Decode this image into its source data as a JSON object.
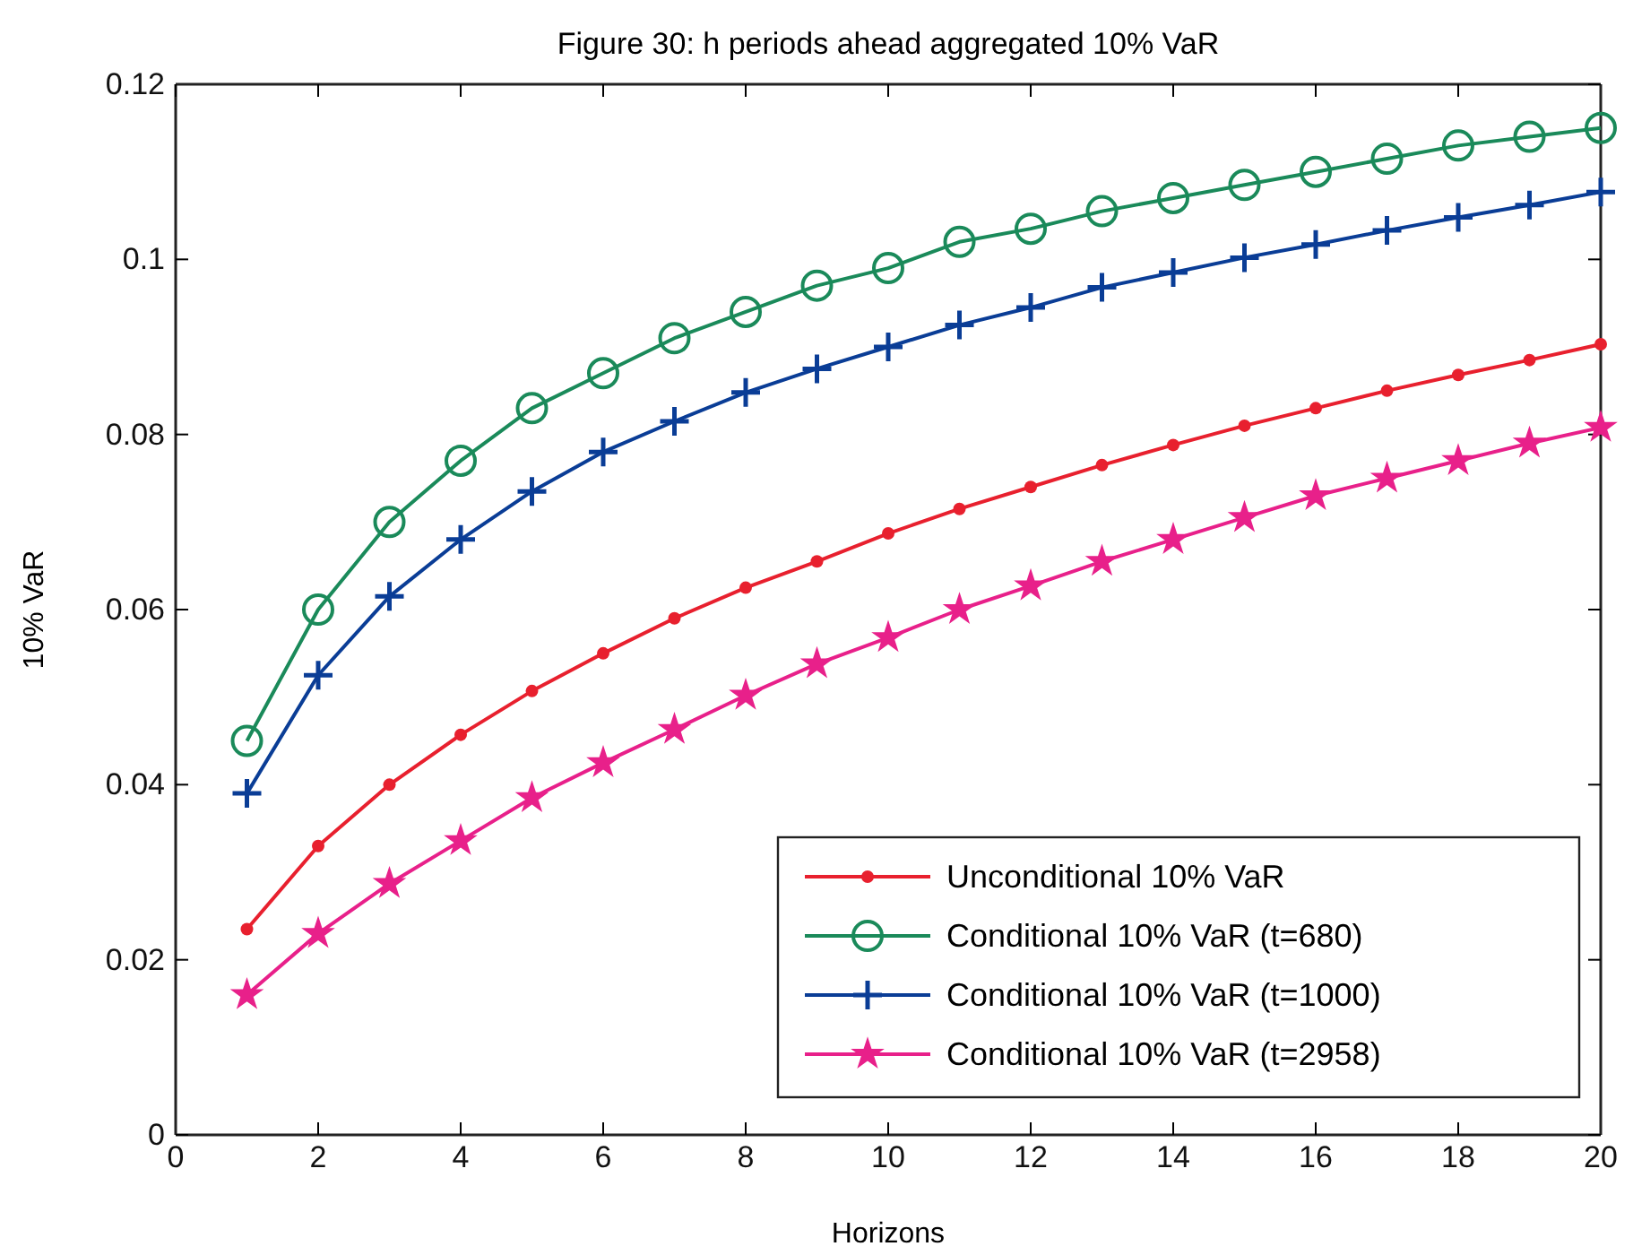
{
  "chart_data": {
    "type": "line",
    "title": "Figure 30: h periods ahead aggregated 10% VaR",
    "xlabel": "Horizons",
    "ylabel": "10% VaR",
    "x": [
      1,
      2,
      3,
      4,
      5,
      6,
      7,
      8,
      9,
      10,
      11,
      12,
      13,
      14,
      15,
      16,
      17,
      18,
      19,
      20
    ],
    "xlim": [
      0,
      20
    ],
    "xticks": [
      0,
      2,
      4,
      6,
      8,
      10,
      12,
      14,
      16,
      18,
      20
    ],
    "ylim": [
      0,
      0.12
    ],
    "yticks": [
      0,
      0.02,
      0.04,
      0.06,
      0.08,
      0.1,
      0.12
    ],
    "grid": false,
    "legend": "bottom right",
    "line_style": "solid",
    "series": [
      {
        "name": "Unconditional 10% VaR",
        "color": "#e8202e",
        "marker": "circle",
        "values": [
          0.0235,
          0.033,
          0.04,
          0.0457,
          0.0507,
          0.055,
          0.059,
          0.0625,
          0.0655,
          0.0687,
          0.0715,
          0.074,
          0.0765,
          0.0788,
          0.081,
          0.083,
          0.085,
          0.0868,
          0.0885,
          0.0903
        ]
      },
      {
        "name": "Conditional 10% VaR (t=680)",
        "color": "#1a8a5a",
        "marker": "circle",
        "values": [
          0.045,
          0.06,
          0.07,
          0.077,
          0.083,
          0.087,
          0.091,
          0.094,
          0.097,
          0.099,
          0.102,
          0.1035,
          0.1055,
          0.107,
          0.1085,
          0.11,
          0.1115,
          0.113,
          0.114,
          0.115
        ]
      },
      {
        "name": "Conditional 10% VaR (t=1000)",
        "color": "#0a3d96",
        "marker": "cross",
        "values": [
          0.039,
          0.0525,
          0.0615,
          0.068,
          0.0735,
          0.078,
          0.0815,
          0.0848,
          0.0875,
          0.09,
          0.0925,
          0.0945,
          0.0968,
          0.0985,
          0.1002,
          0.1017,
          0.1033,
          0.1048,
          0.1062,
          0.1077
        ]
      },
      {
        "name": "Conditional 10% VaR (t=2958)",
        "color": "#e8208a",
        "marker": "star",
        "values": [
          0.016,
          0.023,
          0.0287,
          0.0336,
          0.0385,
          0.0425,
          0.0463,
          0.0502,
          0.0538,
          0.0568,
          0.06,
          0.0627,
          0.0655,
          0.068,
          0.0705,
          0.073,
          0.075,
          0.077,
          0.079,
          0.0808
        ]
      }
    ]
  }
}
